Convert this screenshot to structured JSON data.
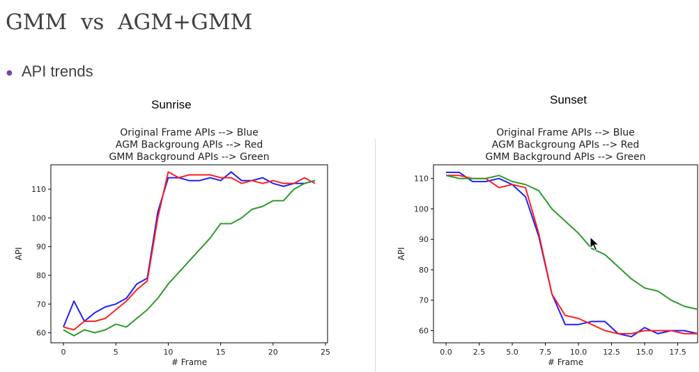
{
  "slide": {
    "title": "GMM  vs  AGM+GMM",
    "bullet": "API trends",
    "bullet_color": "#7e3fa8",
    "cursor_icon": "mouse-pointer-icon"
  },
  "charts": [
    {
      "caption": "Sunrise"
    },
    {
      "caption": "Sunset"
    }
  ],
  "chart_data": [
    {
      "type": "line",
      "title_lines": [
        "Original Frame APIs --> Blue",
        "AGM Backgroung APIs --> Red",
        "GMM Background APIs --> Green"
      ],
      "xlabel": "# Frame",
      "ylabel": "API",
      "xlim": [
        -1.2,
        25.2
      ],
      "ylim": [
        56.5,
        118.5
      ],
      "xticks": [
        0,
        5,
        10,
        15,
        20,
        25
      ],
      "yticks": [
        60,
        70,
        80,
        90,
        100,
        110
      ],
      "x": [
        0,
        1,
        2,
        3,
        4,
        5,
        6,
        7,
        8,
        9,
        10,
        11,
        12,
        13,
        14,
        15,
        16,
        17,
        18,
        19,
        20,
        21,
        22,
        23,
        24
      ],
      "series": [
        {
          "color": "#1f1fff",
          "values": [
            62,
            71,
            64,
            67,
            69,
            70,
            72,
            77,
            79,
            102,
            114,
            114,
            113,
            113,
            114,
            113,
            116,
            113,
            113,
            114,
            112,
            111,
            112,
            112,
            113
          ]
        },
        {
          "color": "#ff1f1f",
          "values": [
            62,
            61,
            64,
            64,
            65,
            68,
            71,
            75,
            78,
            100,
            116,
            114,
            115,
            115,
            115,
            114,
            114,
            112,
            113,
            112,
            113,
            112,
            112,
            114,
            112
          ]
        },
        {
          "color": "#2a9a2a",
          "values": [
            61,
            59,
            61,
            60,
            61,
            63,
            62,
            65,
            68,
            72,
            77,
            81,
            85,
            89,
            93,
            98,
            98,
            100,
            103,
            104,
            106,
            106,
            110,
            112,
            113
          ]
        }
      ]
    },
    {
      "type": "line",
      "title_lines": [
        "Original Frame APIs --> Blue",
        "AGM Backgroung APIs --> Red",
        "GMM Background APIs --> Green"
      ],
      "xlabel": "# Frame",
      "ylabel": "API",
      "xlim": [
        -0.95,
        19.0
      ],
      "ylim": [
        56.0,
        114.5
      ],
      "xticks": [
        0.0,
        2.5,
        5.0,
        7.5,
        10.0,
        12.5,
        15.0,
        17.5
      ],
      "xtick_labels": [
        "0.0",
        "2.5",
        "5.0",
        "7.5",
        "10.0",
        "12.5",
        "15.0",
        "17.5"
      ],
      "yticks": [
        60,
        70,
        80,
        90,
        100,
        110
      ],
      "x": [
        0,
        1,
        2,
        3,
        4,
        5,
        6,
        7,
        8,
        9,
        10,
        11,
        12,
        13,
        14,
        15,
        16,
        17,
        18,
        19
      ],
      "series": [
        {
          "color": "#1f1fff",
          "values": [
            112,
            112,
            109,
            109,
            110,
            108,
            104,
            91,
            72,
            62,
            62,
            63,
            63,
            59,
            58,
            61,
            59,
            60,
            60,
            59
          ]
        },
        {
          "color": "#ff1f1f",
          "values": [
            111,
            111,
            110,
            110,
            107,
            108,
            107,
            92,
            72,
            65,
            64,
            62,
            60,
            59,
            59,
            60,
            60,
            60,
            59,
            59
          ]
        },
        {
          "color": "#2a9a2a",
          "values": [
            111,
            110,
            110,
            110,
            111,
            109,
            108,
            106,
            100,
            96,
            92,
            87,
            85,
            81,
            77,
            74,
            73,
            70,
            68,
            67
          ]
        }
      ]
    }
  ]
}
